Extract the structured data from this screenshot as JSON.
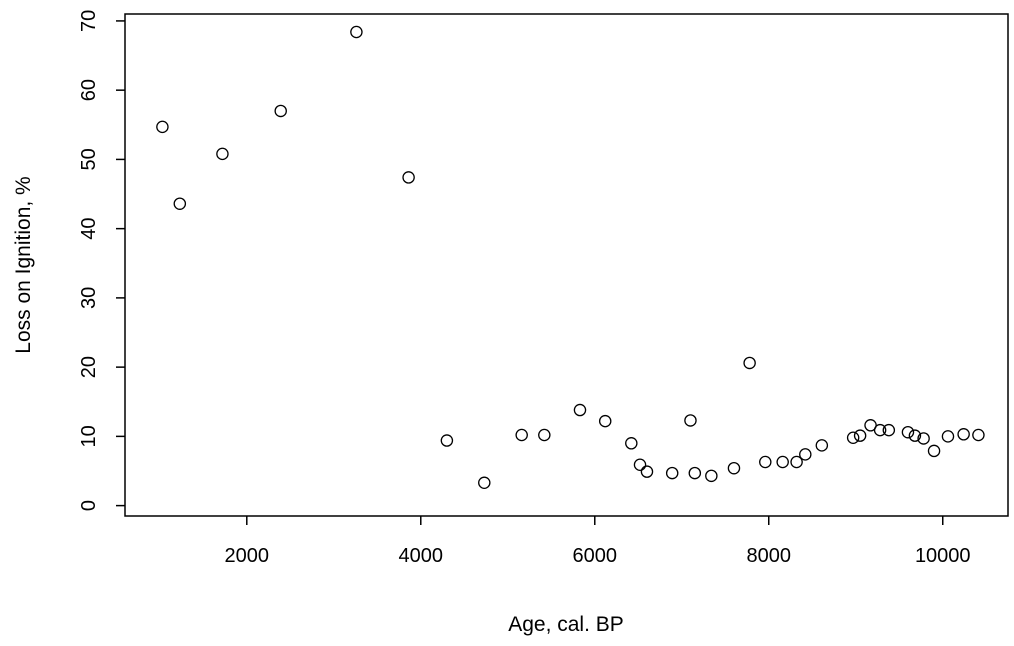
{
  "chart_data": {
    "type": "scatter",
    "title": "",
    "xlabel": "Age, cal. BP",
    "ylabel": "Loss on Ignition, %",
    "xlim": [
      600,
      10750
    ],
    "ylim": [
      -1.5,
      71
    ],
    "xticks": [
      2000,
      4000,
      6000,
      8000,
      10000
    ],
    "xtick_labels": [
      "2000",
      "4000",
      "6000",
      "8000",
      "10000"
    ],
    "yticks": [
      0,
      10,
      20,
      30,
      40,
      50,
      60,
      70
    ],
    "ytick_labels": [
      "0",
      "10",
      "20",
      "30",
      "40",
      "50",
      "60",
      "70"
    ],
    "grid": false,
    "marker": "open-circle",
    "colors": {
      "marker": "#000000",
      "axis": "#000000",
      "background": "#ffffff"
    },
    "points": [
      {
        "x": 1030,
        "y": 54.7
      },
      {
        "x": 1230,
        "y": 43.6
      },
      {
        "x": 1720,
        "y": 50.8
      },
      {
        "x": 2390,
        "y": 57.0
      },
      {
        "x": 3260,
        "y": 68.4
      },
      {
        "x": 3860,
        "y": 47.4
      },
      {
        "x": 4300,
        "y": 9.4
      },
      {
        "x": 4730,
        "y": 3.3
      },
      {
        "x": 5160,
        "y": 10.2
      },
      {
        "x": 5420,
        "y": 10.2
      },
      {
        "x": 5830,
        "y": 13.8
      },
      {
        "x": 6120,
        "y": 12.2
      },
      {
        "x": 6420,
        "y": 9.0
      },
      {
        "x": 6520,
        "y": 5.9
      },
      {
        "x": 6600,
        "y": 4.9
      },
      {
        "x": 6890,
        "y": 4.7
      },
      {
        "x": 7100,
        "y": 12.3
      },
      {
        "x": 7150,
        "y": 4.7
      },
      {
        "x": 7340,
        "y": 4.3
      },
      {
        "x": 7600,
        "y": 5.4
      },
      {
        "x": 7780,
        "y": 20.6
      },
      {
        "x": 7960,
        "y": 6.3
      },
      {
        "x": 8160,
        "y": 6.3
      },
      {
        "x": 8320,
        "y": 6.3
      },
      {
        "x": 8420,
        "y": 7.4
      },
      {
        "x": 8610,
        "y": 8.7
      },
      {
        "x": 8970,
        "y": 9.8
      },
      {
        "x": 9050,
        "y": 10.1
      },
      {
        "x": 9170,
        "y": 11.6
      },
      {
        "x": 9280,
        "y": 10.9
      },
      {
        "x": 9380,
        "y": 10.9
      },
      {
        "x": 9600,
        "y": 10.6
      },
      {
        "x": 9680,
        "y": 10.1
      },
      {
        "x": 9780,
        "y": 9.7
      },
      {
        "x": 9900,
        "y": 7.9
      },
      {
        "x": 10060,
        "y": 10.0
      },
      {
        "x": 10240,
        "y": 10.3
      },
      {
        "x": 10410,
        "y": 10.2
      }
    ]
  }
}
